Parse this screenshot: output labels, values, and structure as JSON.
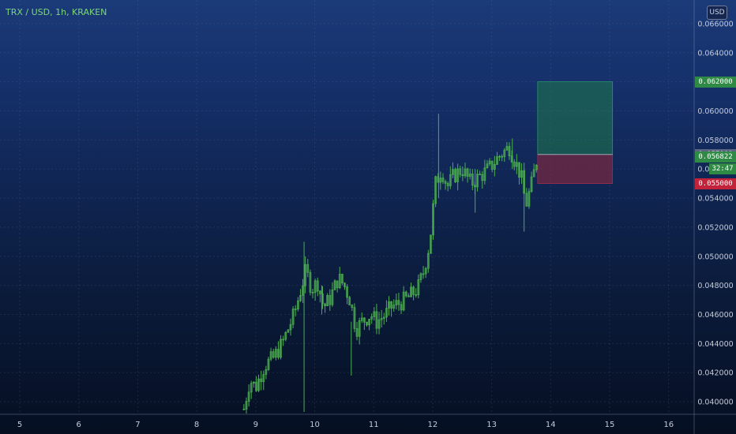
{
  "header": {
    "title": "TRX / USD, 1h, KRAKEN",
    "currency_button": "USD"
  },
  "price_tags": {
    "target": "0.062000",
    "entry": "0.057000",
    "current": "0.056822",
    "countdown": "32:47",
    "stop": "0.055000"
  },
  "colors": {
    "candle": "#4caf50",
    "target_zone": "#1f7a4a",
    "stop_zone": "#7a2a40",
    "tag_green": "#2f8a45",
    "tag_red": "#c2233b",
    "tag_gray": "#5c6680"
  },
  "chart_data": {
    "type": "candlestick",
    "title": "TRX / USD, 1h, KRAKEN",
    "x_ticks": [
      "5",
      "6",
      "7",
      "8",
      "9",
      "10",
      "11",
      "12",
      "13",
      "14",
      "15",
      "16"
    ],
    "y_ticks": [
      "0.040000",
      "0.042000",
      "0.044000",
      "0.046000",
      "0.048000",
      "0.050000",
      "0.052000",
      "0.054000",
      "0.056000",
      "0.058000",
      "0.060000",
      "0.062000",
      "0.064000",
      "0.066000"
    ],
    "ylim": [
      0.0393,
      0.0667
    ],
    "xlim": [
      4.6,
      16.4
    ],
    "grid": true,
    "price_anchors": [
      [
        8.8,
        0.0395
      ],
      [
        8.9,
        0.0415
      ],
      [
        9.0,
        0.041
      ],
      [
        9.15,
        0.0425
      ],
      [
        9.3,
        0.043
      ],
      [
        9.45,
        0.044
      ],
      [
        9.55,
        0.045
      ],
      [
        9.65,
        0.046
      ],
      [
        9.75,
        0.0475
      ],
      [
        9.85,
        0.049
      ],
      [
        9.95,
        0.0478
      ],
      [
        10.05,
        0.0482
      ],
      [
        10.15,
        0.0465
      ],
      [
        10.25,
        0.047
      ],
      [
        10.4,
        0.0485
      ],
      [
        10.5,
        0.048
      ],
      [
        10.6,
        0.047
      ],
      [
        10.7,
        0.045
      ],
      [
        10.8,
        0.0455
      ],
      [
        10.95,
        0.046
      ],
      [
        11.05,
        0.0455
      ],
      [
        11.2,
        0.046
      ],
      [
        11.3,
        0.0465
      ],
      [
        11.45,
        0.0468
      ],
      [
        11.6,
        0.0472
      ],
      [
        11.75,
        0.0478
      ],
      [
        11.85,
        0.049
      ],
      [
        11.95,
        0.051
      ],
      [
        12.05,
        0.055
      ],
      [
        12.15,
        0.056
      ],
      [
        12.25,
        0.0548
      ],
      [
        12.35,
        0.0555
      ],
      [
        12.5,
        0.056
      ],
      [
        12.65,
        0.055
      ],
      [
        12.8,
        0.0555
      ],
      [
        12.95,
        0.056
      ],
      [
        13.05,
        0.0565
      ],
      [
        13.15,
        0.057
      ],
      [
        13.3,
        0.0575
      ],
      [
        13.4,
        0.0565
      ],
      [
        13.5,
        0.0555
      ],
      [
        13.58,
        0.0535
      ],
      [
        13.68,
        0.055
      ],
      [
        13.77,
        0.0568
      ]
    ],
    "spikes": [
      {
        "x": 9.82,
        "high": 0.051,
        "low": 0.0393
      },
      {
        "x": 10.12,
        "high": 0.048,
        "low": 0.046
      },
      {
        "x": 10.62,
        "high": 0.0455,
        "low": 0.0418
      },
      {
        "x": 12.1,
        "high": 0.0598,
        "low": 0.054
      },
      {
        "x": 12.72,
        "high": 0.056,
        "low": 0.053
      },
      {
        "x": 13.35,
        "high": 0.0581,
        "low": 0.056
      },
      {
        "x": 13.55,
        "high": 0.056,
        "low": 0.0517
      }
    ],
    "last_price": 0.056822,
    "position": {
      "x_start": 13.78,
      "x_end": 15.05,
      "entry": 0.057,
      "target": 0.062,
      "stop": 0.055
    }
  }
}
